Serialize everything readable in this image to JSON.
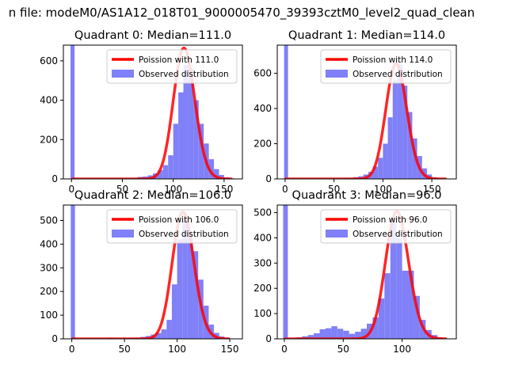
{
  "figure": {
    "suptitle": "n file: modeM0/AS1A12_018T01_9000005470_39393cztM0_level2_quad_clean"
  },
  "colors": {
    "hist": "#8080f8",
    "poisson": "#ff0000",
    "axis": "#000000"
  },
  "chart_data": [
    {
      "type": "bar",
      "title": "Quadrant 0: Median=111.0",
      "xlim": [
        -8,
        168
      ],
      "ylim": [
        0,
        680
      ],
      "xticks": [
        0,
        50,
        100,
        150
      ],
      "yticks": [
        0,
        200,
        400,
        600
      ],
      "legend": {
        "placement": "top-right",
        "entries": [
          "Poission with 111.0",
          "Observed distribution"
        ]
      },
      "series": [
        {
          "name": "Observed distribution",
          "kind": "histogram",
          "bins": [
            [
              -1,
              3,
              680
            ],
            [
              3,
              55,
              2
            ],
            [
              55,
              60,
              3
            ],
            [
              60,
              65,
              5
            ],
            [
              65,
              70,
              10
            ],
            [
              70,
              75,
              12
            ],
            [
              75,
              80,
              18
            ],
            [
              80,
              85,
              28
            ],
            [
              85,
              90,
              45
            ],
            [
              90,
              95,
              70
            ],
            [
              95,
              100,
              120
            ],
            [
              100,
              105,
              280
            ],
            [
              105,
              110,
              440
            ],
            [
              110,
              115,
              580
            ],
            [
              115,
              120,
              560
            ],
            [
              120,
              125,
              400
            ],
            [
              125,
              130,
              280
            ],
            [
              130,
              135,
              180
            ],
            [
              135,
              140,
              100
            ],
            [
              140,
              145,
              50
            ],
            [
              145,
              150,
              20
            ],
            [
              150,
              155,
              8
            ],
            [
              155,
              160,
              3
            ]
          ]
        },
        {
          "name": "Poission with 111.0",
          "kind": "poisson",
          "mean": 111,
          "peak": 665,
          "x_range": [
            0,
            158
          ]
        }
      ]
    },
    {
      "type": "bar",
      "title": "Quadrant 1: Median=114.0",
      "xlim": [
        -8,
        175
      ],
      "ylim": [
        0,
        760
      ],
      "xticks": [
        0,
        50,
        100,
        150
      ],
      "yticks": [
        0,
        200,
        400,
        600
      ],
      "legend": {
        "placement": "top-right",
        "entries": [
          "Poission with 114.0",
          "Observed distribution"
        ]
      },
      "series": [
        {
          "name": "Observed distribution",
          "kind": "histogram",
          "bins": [
            [
              -1,
              3,
              760
            ],
            [
              3,
              60,
              2
            ],
            [
              60,
              65,
              4
            ],
            [
              65,
              70,
              6
            ],
            [
              70,
              75,
              10
            ],
            [
              75,
              80,
              15
            ],
            [
              80,
              85,
              25
            ],
            [
              85,
              90,
              40
            ],
            [
              90,
              95,
              70
            ],
            [
              95,
              100,
              120
            ],
            [
              100,
              105,
              200
            ],
            [
              105,
              110,
              350
            ],
            [
              110,
              115,
              560
            ],
            [
              115,
              120,
              650
            ],
            [
              120,
              125,
              530
            ],
            [
              125,
              130,
              380
            ],
            [
              130,
              135,
              230
            ],
            [
              135,
              140,
              130
            ],
            [
              140,
              145,
              60
            ],
            [
              145,
              150,
              25
            ],
            [
              150,
              155,
              10
            ],
            [
              155,
              160,
              4
            ]
          ]
        },
        {
          "name": "Poission with 114.0",
          "kind": "poisson",
          "mean": 114,
          "peak": 655,
          "x_range": [
            0,
            165
          ]
        }
      ]
    },
    {
      "type": "bar",
      "title": "Quadrant 2: Median=106.0",
      "xlim": [
        -8,
        162
      ],
      "ylim": [
        0,
        565
      ],
      "xticks": [
        0,
        50,
        100,
        150
      ],
      "yticks": [
        0,
        100,
        200,
        300,
        400,
        500
      ],
      "legend": {
        "placement": "top-right",
        "entries": [
          "Poission with 106.0",
          "Observed distribution"
        ]
      },
      "series": [
        {
          "name": "Observed distribution",
          "kind": "histogram",
          "bins": [
            [
              -1,
              3,
              565
            ],
            [
              3,
              35,
              2
            ],
            [
              35,
              40,
              4
            ],
            [
              40,
              55,
              2
            ],
            [
              55,
              60,
              3
            ],
            [
              60,
              65,
              5
            ],
            [
              65,
              70,
              8
            ],
            [
              70,
              75,
              12
            ],
            [
              75,
              80,
              18
            ],
            [
              80,
              85,
              25
            ],
            [
              85,
              90,
              40
            ],
            [
              90,
              95,
              80
            ],
            [
              95,
              100,
              230
            ],
            [
              100,
              105,
              420
            ],
            [
              105,
              110,
              500
            ],
            [
              110,
              115,
              450
            ],
            [
              115,
              120,
              370
            ],
            [
              120,
              125,
              250
            ],
            [
              125,
              130,
              140
            ],
            [
              130,
              135,
              60
            ],
            [
              135,
              140,
              25
            ],
            [
              140,
              145,
              10
            ],
            [
              145,
              150,
              4
            ]
          ]
        },
        {
          "name": "Poission with 106.0",
          "kind": "poisson",
          "mean": 106,
          "peak": 535,
          "x_range": [
            0,
            150
          ]
        }
      ]
    },
    {
      "type": "bar",
      "title": "Quadrant 3: Median=96.0",
      "xlim": [
        -6,
        146
      ],
      "ylim": [
        0,
        530
      ],
      "xticks": [
        0,
        50,
        100
      ],
      "yticks": [
        0,
        100,
        200,
        300,
        400,
        500
      ],
      "legend": {
        "placement": "top-right",
        "entries": [
          "Poission with 96.0",
          "Observed distribution"
        ]
      },
      "series": [
        {
          "name": "Observed distribution",
          "kind": "histogram",
          "bins": [
            [
              -1,
              3,
              530
            ],
            [
              3,
              10,
              2
            ],
            [
              10,
              15,
              6
            ],
            [
              15,
              20,
              10
            ],
            [
              20,
              25,
              15
            ],
            [
              25,
              30,
              22
            ],
            [
              30,
              35,
              38
            ],
            [
              35,
              40,
              42
            ],
            [
              40,
              45,
              50
            ],
            [
              45,
              50,
              40
            ],
            [
              50,
              55,
              32
            ],
            [
              55,
              60,
              20
            ],
            [
              60,
              65,
              28
            ],
            [
              65,
              70,
              40
            ],
            [
              70,
              75,
              60
            ],
            [
              75,
              80,
              85
            ],
            [
              80,
              85,
              160
            ],
            [
              85,
              90,
              260
            ],
            [
              90,
              95,
              480
            ],
            [
              95,
              100,
              400
            ],
            [
              100,
              105,
              270
            ],
            [
              105,
              110,
              270
            ],
            [
              110,
              115,
              170
            ],
            [
              115,
              120,
              75
            ],
            [
              120,
              125,
              35
            ],
            [
              125,
              130,
              15
            ],
            [
              130,
              135,
              5
            ]
          ]
        },
        {
          "name": "Poission with 96.0",
          "kind": "poisson",
          "mean": 96,
          "peak": 505,
          "x_range": [
            0,
            138
          ]
        }
      ]
    }
  ]
}
